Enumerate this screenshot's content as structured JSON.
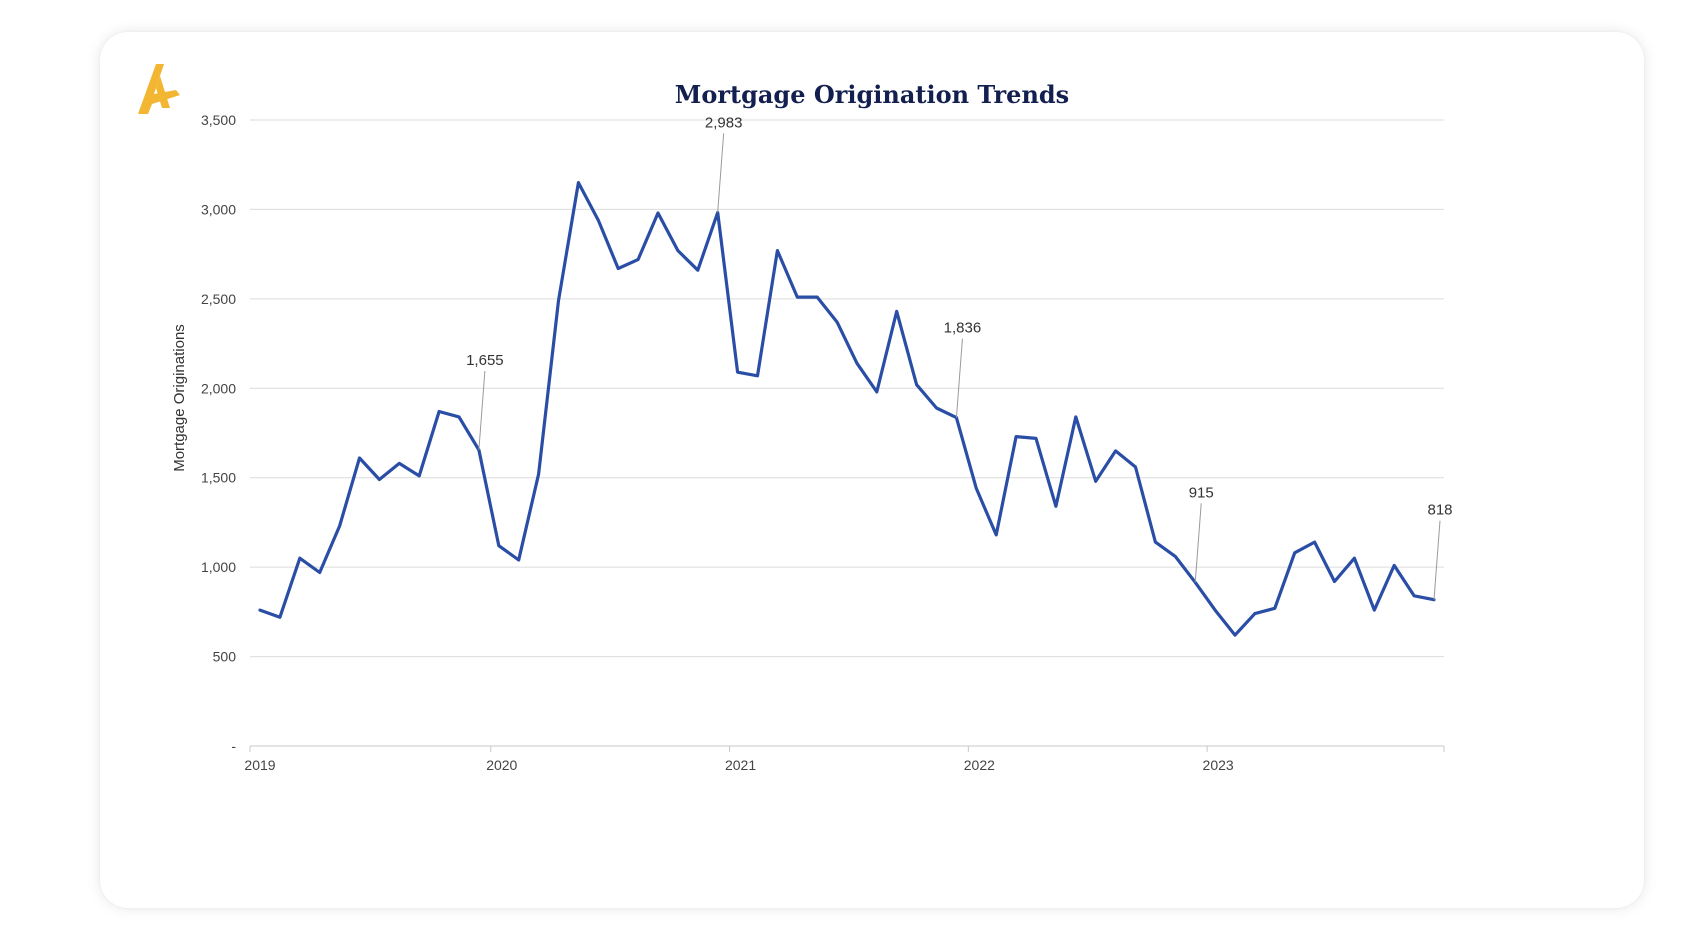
{
  "brand": {
    "logo_icon": "gold-a-logo-icon",
    "accent_color": "#f2b632",
    "title_color": "#13204f",
    "line_color": "#2a4ea6"
  },
  "chart_data": {
    "type": "line",
    "title": "Mortgage Origination Trends",
    "ylabel": "Mortgage Originations",
    "xlabel": "",
    "ylim": [
      0,
      3500
    ],
    "yticks": [
      {
        "value": 0,
        "label": "-"
      },
      {
        "value": 500,
        "label": "500"
      },
      {
        "value": 1000,
        "label": "1,000"
      },
      {
        "value": 1500,
        "label": "1,500"
      },
      {
        "value": 2000,
        "label": "2,000"
      },
      {
        "value": 2500,
        "label": "2,500"
      },
      {
        "value": 3000,
        "label": "3,000"
      },
      {
        "value": 3500,
        "label": "3,500"
      }
    ],
    "xticks": [
      {
        "index": 0,
        "label": "2019"
      },
      {
        "index": 12,
        "label": "2020"
      },
      {
        "index": 24,
        "label": "2021"
      },
      {
        "index": 36,
        "label": "2022"
      },
      {
        "index": 48,
        "label": "2023"
      }
    ],
    "grid": true,
    "series": [
      {
        "values": [
          760,
          720,
          1050,
          970,
          1230,
          1610,
          1490,
          1580,
          1510,
          1870,
          1840,
          1655,
          1120,
          1040,
          1520,
          2490,
          3150,
          2940,
          2670,
          2720,
          2980,
          2770,
          2660,
          2983,
          2090,
          2070,
          2770,
          2510,
          2510,
          2370,
          2140,
          1980,
          2430,
          2020,
          1890,
          1836,
          1440,
          1180,
          1730,
          1720,
          1340,
          1840,
          1480,
          1650,
          1560,
          1140,
          1060,
          915,
          760,
          620,
          740,
          770,
          1080,
          1140,
          920,
          1050,
          760,
          1010,
          840,
          818
        ]
      }
    ],
    "annotations": [
      {
        "index": 11,
        "value": 1655,
        "label": "1,655"
      },
      {
        "index": 23,
        "value": 2983,
        "label": "2,983"
      },
      {
        "index": 35,
        "value": 1836,
        "label": "1,836"
      },
      {
        "index": 47,
        "value": 915,
        "label": "915"
      },
      {
        "index": 59,
        "value": 818,
        "label": "818"
      }
    ]
  }
}
